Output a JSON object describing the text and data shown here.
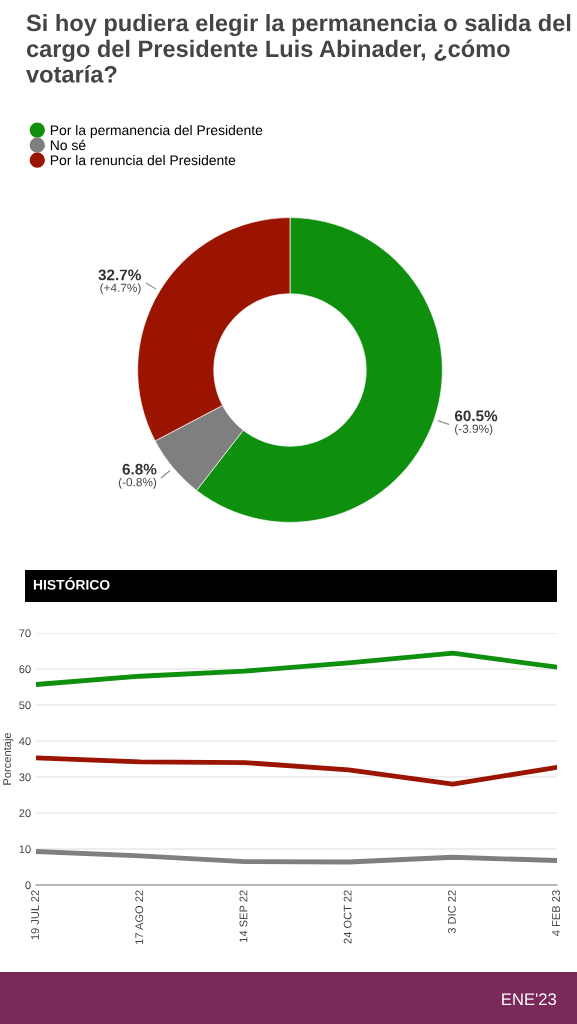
{
  "chart_data": [
    {
      "type": "donut",
      "title": "Si hoy pudiera elegir la permanencia o salida del cargo del Presidente Luis Abinader, ¿cómo votaría?",
      "categories": [
        "Por la permanencia del Presidente",
        "No sé",
        "Por la renuncia del Presidente"
      ],
      "values": [
        60.5,
        6.8,
        32.7
      ],
      "colors": [
        "#0e8f0e",
        "#7f7f7f",
        "#9b1400"
      ],
      "value_labels": [
        "60.5%\n(-3.9%)",
        "6.8%\n(-0.8%)",
        "32.7%\n(+4.7%)"
      ],
      "legend": "top left"
    },
    {
      "type": "line",
      "title": "HISTÓRICO",
      "ylabel": "Porcentaje",
      "categories": [
        "19 JUL 22",
        "17 AGO 22",
        "14 SEP 22",
        "24 OCT 22",
        "3 DIC 22",
        "4 FEB 23"
      ],
      "series": [
        {
          "color": "#0e8f0e",
          "values": [
            55.7,
            58.0,
            59.4,
            61.7,
            64.4,
            60.5
          ]
        },
        {
          "color": "#7f7f7f",
          "values": [
            9.3,
            8.1,
            6.5,
            6.4,
            7.7,
            6.8
          ]
        },
        {
          "color": "#9b1400",
          "values": [
            35.3,
            34.2,
            34.0,
            32.0,
            28.0,
            32.7
          ]
        }
      ],
      "ylim": [
        0,
        70
      ],
      "yticks": [
        0,
        10,
        20,
        30,
        40,
        50,
        60,
        70
      ],
      "grid": "y",
      "annotations": [
        "ENE'23"
      ]
    }
  ]
}
